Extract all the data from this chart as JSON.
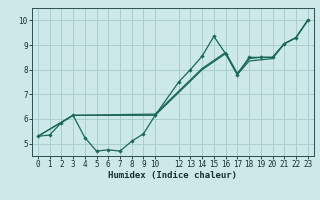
{
  "xlabel": "Humidex (Indice chaleur)",
  "bg_color": "#cce8e8",
  "grid_color": "#aacece",
  "line_color": "#1a6858",
  "xlim": [
    -0.5,
    23.5
  ],
  "ylim": [
    4.5,
    10.5
  ],
  "xticks": [
    0,
    1,
    2,
    3,
    4,
    5,
    6,
    7,
    8,
    9,
    10,
    12,
    13,
    14,
    15,
    16,
    17,
    18,
    19,
    20,
    21,
    22,
    23
  ],
  "yticks": [
    5,
    6,
    7,
    8,
    9,
    10
  ],
  "line1_x": [
    0,
    1,
    2,
    3,
    4,
    5,
    6,
    7,
    8,
    9,
    10,
    12,
    13,
    14,
    15,
    16,
    17,
    18,
    19,
    20,
    21,
    22,
    23
  ],
  "line1_y": [
    5.3,
    5.35,
    5.85,
    6.15,
    5.25,
    4.7,
    4.75,
    4.7,
    5.1,
    5.4,
    6.15,
    7.5,
    8.0,
    8.55,
    9.35,
    8.65,
    7.8,
    8.5,
    8.5,
    8.5,
    9.05,
    9.3,
    10.0
  ],
  "line2_x": [
    0,
    3,
    10,
    14,
    16,
    17,
    18,
    19,
    20,
    21,
    22,
    23
  ],
  "line2_y": [
    5.3,
    6.15,
    6.15,
    8.0,
    8.65,
    7.8,
    8.35,
    8.4,
    8.45,
    9.05,
    9.3,
    10.0
  ],
  "line3_x": [
    0,
    3,
    10,
    14,
    16,
    17,
    18,
    19,
    20,
    21,
    22,
    23
  ],
  "line3_y": [
    5.3,
    6.15,
    6.2,
    8.05,
    8.7,
    7.85,
    8.45,
    8.5,
    8.5,
    9.05,
    9.3,
    10.0
  ],
  "tick_fontsize": 5.5,
  "xlabel_fontsize": 6.5
}
